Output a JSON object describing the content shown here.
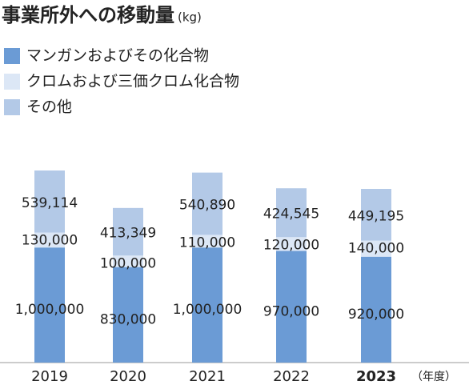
{
  "chart_data": {
    "type": "bar",
    "stacked": true,
    "title": "事業所外への移動量",
    "unit": "(kg)",
    "x_label": "（年度）",
    "categories": [
      "2019",
      "2020",
      "2021",
      "2022",
      "2023"
    ],
    "series": [
      {
        "name": "マンガンおよびその化合物",
        "color": "#6b9bd5",
        "values": [
          1000000,
          830000,
          1000000,
          970000,
          920000
        ],
        "value_labels": [
          "1,000,000",
          "830,000",
          "1,000,000",
          "970,000",
          "920,000"
        ]
      },
      {
        "name": "クロムおよび三価クロム化合物",
        "color": "#dce7f6",
        "values": [
          130000,
          100000,
          110000,
          120000,
          140000
        ],
        "value_labels": [
          "130,000",
          "100,000",
          "110,000",
          "120,000",
          "140,000"
        ]
      },
      {
        "name": "その他",
        "color": "#b3c9e7",
        "values": [
          539114,
          413349,
          540890,
          424545,
          449195
        ],
        "value_labels": [
          "539,114",
          "413,349",
          "540,890",
          "424,545",
          "449,195"
        ]
      }
    ]
  }
}
